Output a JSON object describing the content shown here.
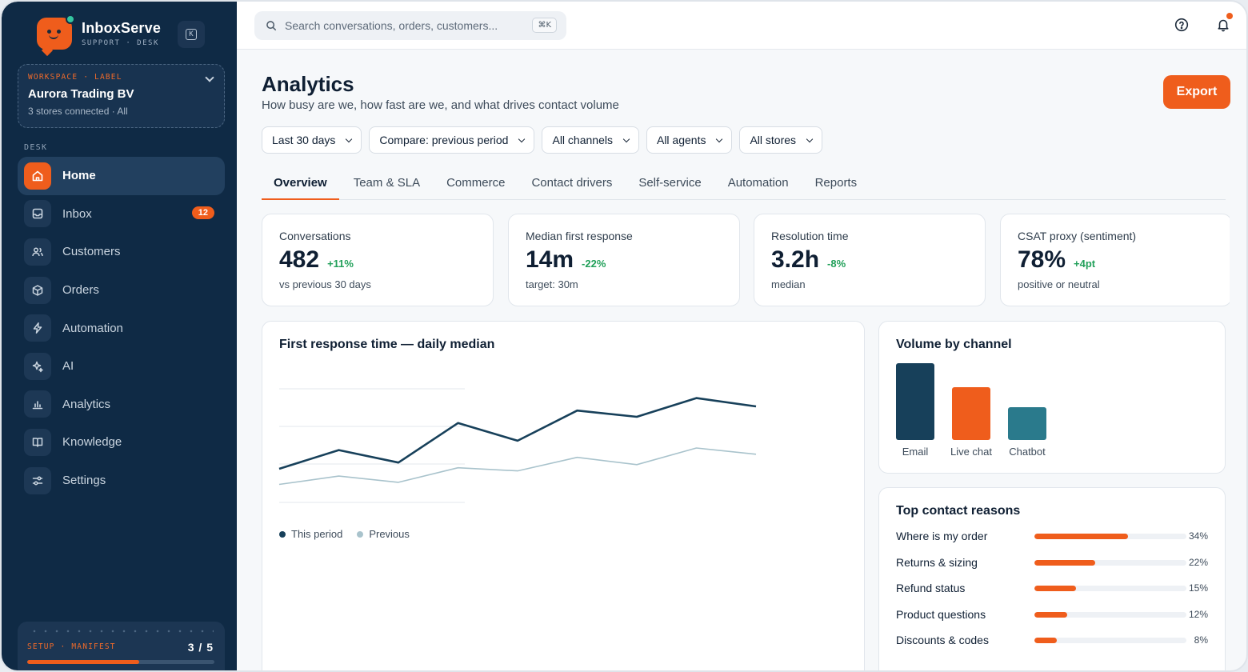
{
  "brand": {
    "name": "InboxServe",
    "sub": "SUPPORT · DESK"
  },
  "collapse_key": "K",
  "workspace": {
    "label": "WORKSPACE · LABEL",
    "name": "Aurora Trading BV",
    "meta": "3 stores connected · All"
  },
  "desk_label": "DESK",
  "nav": [
    {
      "label": "Home",
      "icon": "home-icon",
      "active": true
    },
    {
      "label": "Inbox",
      "icon": "inbox-icon",
      "badge": "12"
    },
    {
      "label": "Customers",
      "icon": "users-icon"
    },
    {
      "label": "Orders",
      "icon": "box-icon"
    },
    {
      "label": "Automation",
      "icon": "bolt-icon"
    },
    {
      "label": "AI",
      "icon": "sparkle-icon"
    },
    {
      "label": "Analytics",
      "icon": "bar-chart-icon"
    },
    {
      "label": "Knowledge",
      "icon": "book-icon"
    },
    {
      "label": "Settings",
      "icon": "sliders-icon"
    }
  ],
  "setup": {
    "label": "SETUP · MANIFEST",
    "count": "3 / 5",
    "progress": 0.6
  },
  "search": {
    "placeholder": "Search conversations, orders, customers...",
    "shortcut": "⌘K"
  },
  "page": {
    "title": "Analytics",
    "subtitle": "How busy are we, how fast are we, and what drives contact volume",
    "export_label": "Export"
  },
  "filters": [
    "Last 30 days",
    "Compare: previous period",
    "All channels",
    "All agents",
    "All stores"
  ],
  "tabs": [
    "Overview",
    "Team & SLA",
    "Commerce",
    "Contact drivers",
    "Self-service",
    "Automation",
    "Reports"
  ],
  "active_tab": "Overview",
  "kpis": [
    {
      "label": "Conversations",
      "value": "482",
      "delta": "+11%",
      "note": "vs previous 30 days"
    },
    {
      "label": "Median first response",
      "value": "14m",
      "delta": "-22%",
      "note": "target: 30m"
    },
    {
      "label": "Resolution time",
      "value": "3.2h",
      "delta": "-8%",
      "note": "median"
    },
    {
      "label": "CSAT proxy (sentiment)",
      "value": "78%",
      "delta": "+4pt",
      "note": "positive or neutral"
    }
  ],
  "colors": {
    "accent": "#ef5d1c",
    "navy": "#0f2a45",
    "positive": "#22a05a",
    "series_current": "#17405a",
    "series_previous": "#a9c3cc"
  },
  "chart_data": [
    {
      "type": "line",
      "title": "First response time — daily median",
      "x": [
        1,
        2,
        3,
        4,
        5,
        6,
        7,
        8,
        9
      ],
      "ylim": [
        0,
        100
      ],
      "grid": true,
      "legend": "bottom-left",
      "series": [
        {
          "name": "This period",
          "color": "#17405a",
          "values": [
            20,
            38,
            26,
            64,
            47,
            76,
            70,
            88,
            80
          ]
        },
        {
          "name": "Previous",
          "color": "#a9c3cc",
          "values": [
            5,
            13,
            7,
            21,
            18,
            31,
            24,
            40,
            34
          ]
        }
      ]
    },
    {
      "type": "bar",
      "title": "Volume by channel",
      "categories": [
        "Email",
        "Live chat",
        "Chatbot"
      ],
      "values": [
        96,
        66,
        41
      ],
      "colors": [
        "#17405a",
        "#ef5d1c",
        "#2a7a8c"
      ],
      "ylim": [
        0,
        100
      ]
    },
    {
      "type": "bar",
      "title": "Top contact reasons",
      "categories": [
        "Where is my order",
        "Returns & sizing",
        "Refund status",
        "Product questions",
        "Discounts & codes"
      ],
      "values": [
        34,
        22,
        15,
        12,
        8
      ],
      "value_labels": [
        "34%",
        "22%",
        "15%",
        "12%",
        "8%"
      ],
      "orientation": "horizontal"
    }
  ]
}
